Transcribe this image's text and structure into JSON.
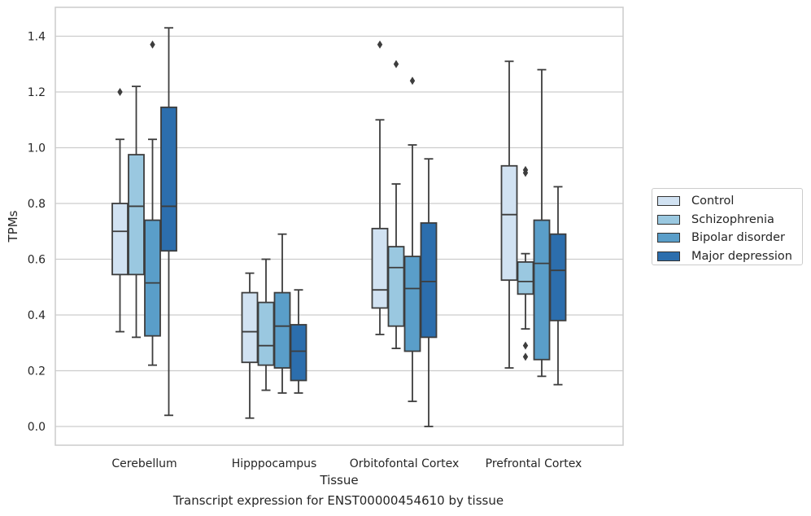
{
  "chart_data": {
    "type": "boxplot",
    "xlabel": "Tissue",
    "ylabel": "TPMs",
    "caption": "Transcript expression for ENST00000454610 by tissue",
    "ylim": [
      -0.07,
      1.5
    ],
    "yticks": [
      0.0,
      0.2,
      0.4,
      0.6,
      0.8,
      1.0,
      1.2,
      1.4
    ],
    "ytick_labels": [
      "0.0",
      "0.2",
      "0.4",
      "0.6",
      "0.8",
      "1.0",
      "1.2",
      "1.4"
    ],
    "grid": "horizontal",
    "legend_position": "right",
    "categories": [
      "Cerebellum",
      "Hipppocampus",
      "Orbitofontal Cortex",
      "Prefrontal Cortex"
    ],
    "series": [
      {
        "name": "Control",
        "color": "#d1e2f2",
        "boxes": [
          {
            "min": 0.34,
            "q1": 0.545,
            "median": 0.7,
            "q3": 0.8,
            "max": 1.03,
            "outliers": [
              1.2
            ]
          },
          {
            "min": 0.03,
            "q1": 0.23,
            "median": 0.34,
            "q3": 0.48,
            "max": 0.55,
            "outliers": []
          },
          {
            "min": 0.33,
            "q1": 0.425,
            "median": 0.49,
            "q3": 0.71,
            "max": 1.1,
            "outliers": [
              1.37
            ]
          },
          {
            "min": 0.21,
            "q1": 0.525,
            "median": 0.76,
            "q3": 0.935,
            "max": 1.31,
            "outliers": []
          }
        ]
      },
      {
        "name": "Schizophrenia",
        "color": "#9ac8e0",
        "boxes": [
          {
            "min": 0.32,
            "q1": 0.545,
            "median": 0.79,
            "q3": 0.975,
            "max": 1.22,
            "outliers": []
          },
          {
            "min": 0.13,
            "q1": 0.22,
            "median": 0.29,
            "q3": 0.445,
            "max": 0.6,
            "outliers": []
          },
          {
            "min": 0.28,
            "q1": 0.36,
            "median": 0.57,
            "q3": 0.645,
            "max": 0.87,
            "outliers": [
              1.3
            ]
          },
          {
            "min": 0.35,
            "q1": 0.475,
            "median": 0.52,
            "q3": 0.59,
            "max": 0.62,
            "outliers": [
              0.91,
              0.92,
              0.29,
              0.25
            ]
          }
        ]
      },
      {
        "name": "Bipolar disorder",
        "color": "#5a9ec9",
        "boxes": [
          {
            "min": 0.22,
            "q1": 0.325,
            "median": 0.515,
            "q3": 0.74,
            "max": 1.03,
            "outliers": [
              1.37
            ]
          },
          {
            "min": 0.12,
            "q1": 0.21,
            "median": 0.36,
            "q3": 0.48,
            "max": 0.69,
            "outliers": []
          },
          {
            "min": 0.09,
            "q1": 0.27,
            "median": 0.495,
            "q3": 0.61,
            "max": 1.01,
            "outliers": [
              1.24
            ]
          },
          {
            "min": 0.18,
            "q1": 0.24,
            "median": 0.585,
            "q3": 0.74,
            "max": 1.28,
            "outliers": []
          }
        ]
      },
      {
        "name": "Major depression",
        "color": "#2c6ead",
        "boxes": [
          {
            "min": 0.04,
            "q1": 0.63,
            "median": 0.79,
            "q3": 1.145,
            "max": 1.43,
            "outliers": []
          },
          {
            "min": 0.12,
            "q1": 0.165,
            "median": 0.27,
            "q3": 0.365,
            "max": 0.49,
            "outliers": []
          },
          {
            "min": 0.0,
            "q1": 0.32,
            "median": 0.52,
            "q3": 0.73,
            "max": 0.96,
            "outliers": []
          },
          {
            "min": 0.15,
            "q1": 0.38,
            "median": 0.56,
            "q3": 0.69,
            "max": 0.86,
            "outliers": []
          }
        ]
      }
    ]
  }
}
